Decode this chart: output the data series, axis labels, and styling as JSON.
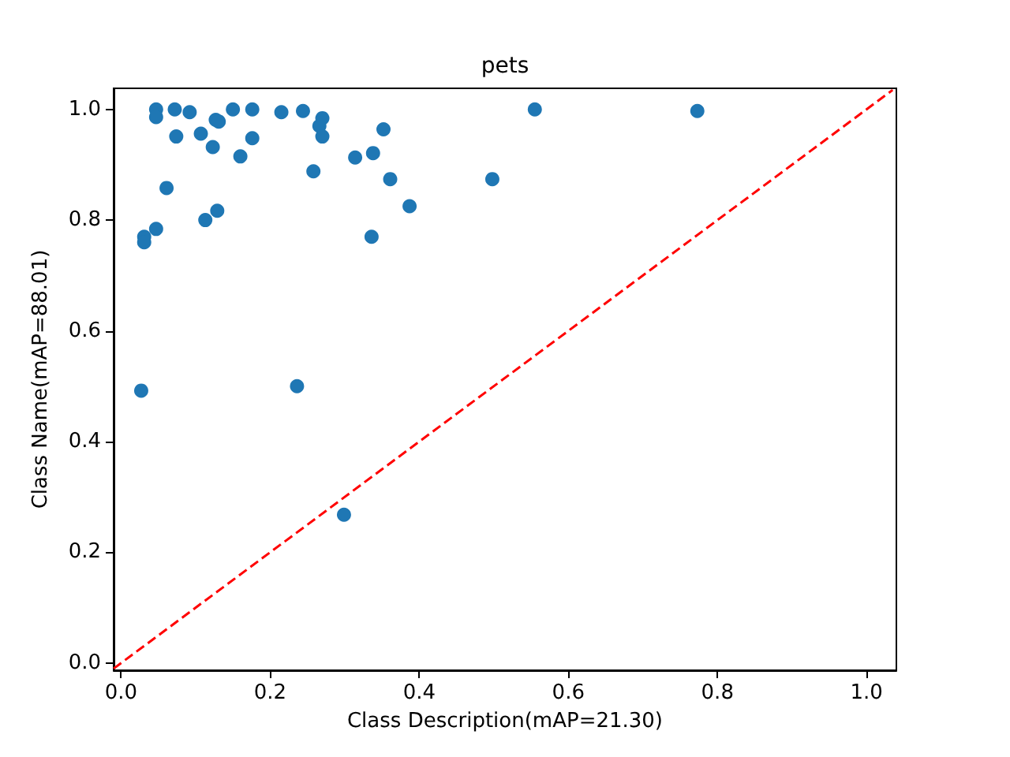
{
  "chart_data": {
    "type": "scatter",
    "title": "pets",
    "xlabel": "Class Description(mAP=21.30)",
    "ylabel": "Class Name(mAP=88.01)",
    "xlim": [
      -0.01,
      1.04
    ],
    "ylim": [
      -0.013,
      1.038
    ],
    "xticks": [
      {
        "value": 0,
        "label": "0.0"
      },
      {
        "value": 0.2,
        "label": "0.2"
      },
      {
        "value": 0.4,
        "label": "0.4"
      },
      {
        "value": 0.6,
        "label": "0.6"
      },
      {
        "value": 0.8,
        "label": "0.8"
      },
      {
        "value": 1,
        "label": "1.0"
      }
    ],
    "yticks": [
      {
        "value": 0,
        "label": "0.0"
      },
      {
        "value": 0.2,
        "label": "0.2"
      },
      {
        "value": 0.4,
        "label": "0.4"
      },
      {
        "value": 0.6,
        "label": "0.6"
      },
      {
        "value": 0.8,
        "label": "0.8"
      },
      {
        "value": 1,
        "label": "1.0"
      }
    ],
    "grid": false,
    "marker": "circle",
    "series": [
      {
        "type": "scatter",
        "color": "#1f77b4",
        "x": [
          0.027,
          0.031,
          0.031,
          0.047,
          0.047,
          0.047,
          0.061,
          0.072,
          0.074,
          0.092,
          0.107,
          0.113,
          0.123,
          0.127,
          0.131,
          0.129,
          0.15,
          0.16,
          0.176,
          0.176,
          0.215,
          0.236,
          0.244,
          0.258,
          0.266,
          0.27,
          0.27,
          0.299,
          0.314,
          0.336,
          0.338,
          0.352,
          0.361,
          0.387,
          0.498,
          0.555,
          0.773
        ],
        "values": [
          0.492,
          0.77,
          0.76,
          0.784,
          1.0,
          0.986,
          0.858,
          1.0,
          0.951,
          0.995,
          0.956,
          0.8,
          0.932,
          0.981,
          0.978,
          0.817,
          1.0,
          0.915,
          1.0,
          0.948,
          0.995,
          0.5,
          0.997,
          0.888,
          0.97,
          0.984,
          0.951,
          0.268,
          0.913,
          0.77,
          0.921,
          0.964,
          0.874,
          0.825,
          0.874,
          1.0,
          0.997
        ]
      },
      {
        "type": "line",
        "color": "#ff0000",
        "line_style": "dashed",
        "marker": "none",
        "x": [
          -0.01,
          1.035
        ],
        "values": [
          -0.01,
          1.035
        ]
      }
    ]
  }
}
